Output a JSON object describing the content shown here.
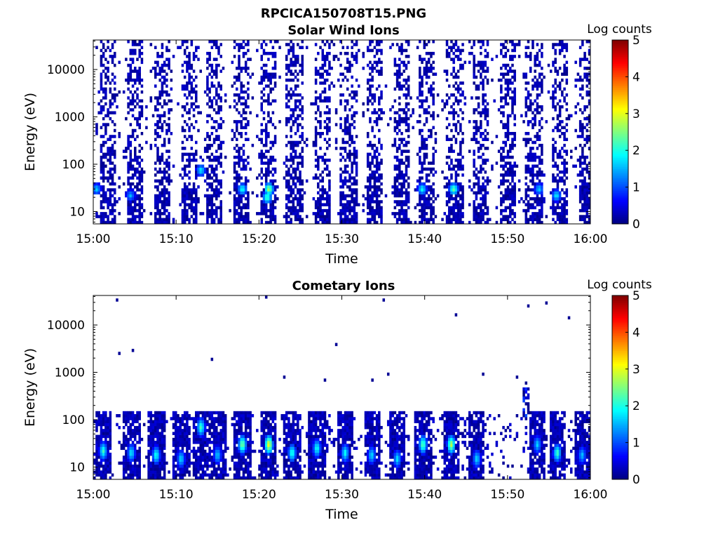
{
  "figure_title": "RPCICA150708T15.PNG",
  "chart_data": [
    {
      "type": "heatmap",
      "title": "Solar Wind Ions",
      "xlabel": "Time",
      "ylabel": "Energy (eV)",
      "x_ticks": [
        "15:00",
        "15:10",
        "15:20",
        "15:30",
        "15:40",
        "15:50",
        "16:00"
      ],
      "xlim_minutes": [
        0,
        60
      ],
      "y_ticks": [
        "10",
        "100",
        "1000",
        "10000"
      ],
      "y_scale": "log",
      "ylim": [
        5.5,
        42000
      ],
      "colorbar": {
        "label": "Log counts",
        "ticks": [
          "0",
          "1",
          "2",
          "3",
          "4",
          "5"
        ],
        "range": [
          0,
          5
        ],
        "colormap": "jet"
      },
      "pattern": "sweep_columns",
      "sweep_centers_minutes": [
        1.8,
        5.1,
        8.3,
        11.5,
        14.6,
        17.9,
        21.1,
        24.3,
        27.6,
        30.8,
        34.0,
        37.2,
        40.3,
        43.6,
        46.8,
        50.0,
        53.2,
        56.4,
        59.6
      ],
      "hotspots": [
        {
          "t": 0.4,
          "e": 30,
          "v": 1.8
        },
        {
          "t": 4.5,
          "e": 22,
          "v": 1.6
        },
        {
          "t": 13.0,
          "e": 75,
          "v": 2.0
        },
        {
          "t": 18.0,
          "e": 30,
          "v": 2.2
        },
        {
          "t": 21.2,
          "e": 30,
          "v": 3.0
        },
        {
          "t": 21.0,
          "e": 20,
          "v": 2.5
        },
        {
          "t": 39.7,
          "e": 30,
          "v": 2.1
        },
        {
          "t": 43.5,
          "e": 30,
          "v": 2.6
        },
        {
          "t": 53.8,
          "e": 30,
          "v": 1.8
        },
        {
          "t": 55.9,
          "e": 22,
          "v": 2.0
        }
      ]
    },
    {
      "type": "heatmap",
      "title": "Cometary Ions",
      "xlabel": "Time",
      "ylabel": "Energy (eV)",
      "x_ticks": [
        "15:00",
        "15:10",
        "15:20",
        "15:30",
        "15:40",
        "15:50",
        "16:00"
      ],
      "xlim_minutes": [
        0,
        60
      ],
      "y_ticks": [
        "10",
        "100",
        "1000",
        "10000"
      ],
      "y_scale": "log",
      "ylim": [
        5.5,
        42000
      ],
      "colorbar": {
        "label": "Log counts",
        "ticks": [
          "0",
          "1",
          "2",
          "3",
          "4",
          "5"
        ],
        "range": [
          0,
          5
        ],
        "colormap": "jet"
      },
      "pattern": "low_energy_bursts",
      "bursts": [
        {
          "t": 1.2,
          "e": 22,
          "v": 2.3
        },
        {
          "t": 4.6,
          "e": 20,
          "v": 2.0
        },
        {
          "t": 7.6,
          "e": 18,
          "v": 2.2
        },
        {
          "t": 10.6,
          "e": 15,
          "v": 1.9
        },
        {
          "t": 13.0,
          "e": 70,
          "v": 2.4
        },
        {
          "t": 15.0,
          "e": 18,
          "v": 1.8
        },
        {
          "t": 18.0,
          "e": 30,
          "v": 2.8
        },
        {
          "t": 21.2,
          "e": 30,
          "v": 3.4
        },
        {
          "t": 24.0,
          "e": 20,
          "v": 2.3
        },
        {
          "t": 27.0,
          "e": 25,
          "v": 2.2
        },
        {
          "t": 30.4,
          "e": 20,
          "v": 2.1
        },
        {
          "t": 33.6,
          "e": 18,
          "v": 1.9
        },
        {
          "t": 36.7,
          "e": 15,
          "v": 1.9
        },
        {
          "t": 39.8,
          "e": 30,
          "v": 2.6
        },
        {
          "t": 43.2,
          "e": 30,
          "v": 3.0
        },
        {
          "t": 46.3,
          "e": 15,
          "v": 1.9
        },
        {
          "t": 53.6,
          "e": 30,
          "v": 1.8
        },
        {
          "t": 56.0,
          "e": 20,
          "v": 2.4
        },
        {
          "t": 59.0,
          "e": 18,
          "v": 1.7
        }
      ],
      "high_energy_feature": {
        "t": 52.3,
        "e_range": [
          120,
          600
        ],
        "v": 1.0
      }
    }
  ]
}
